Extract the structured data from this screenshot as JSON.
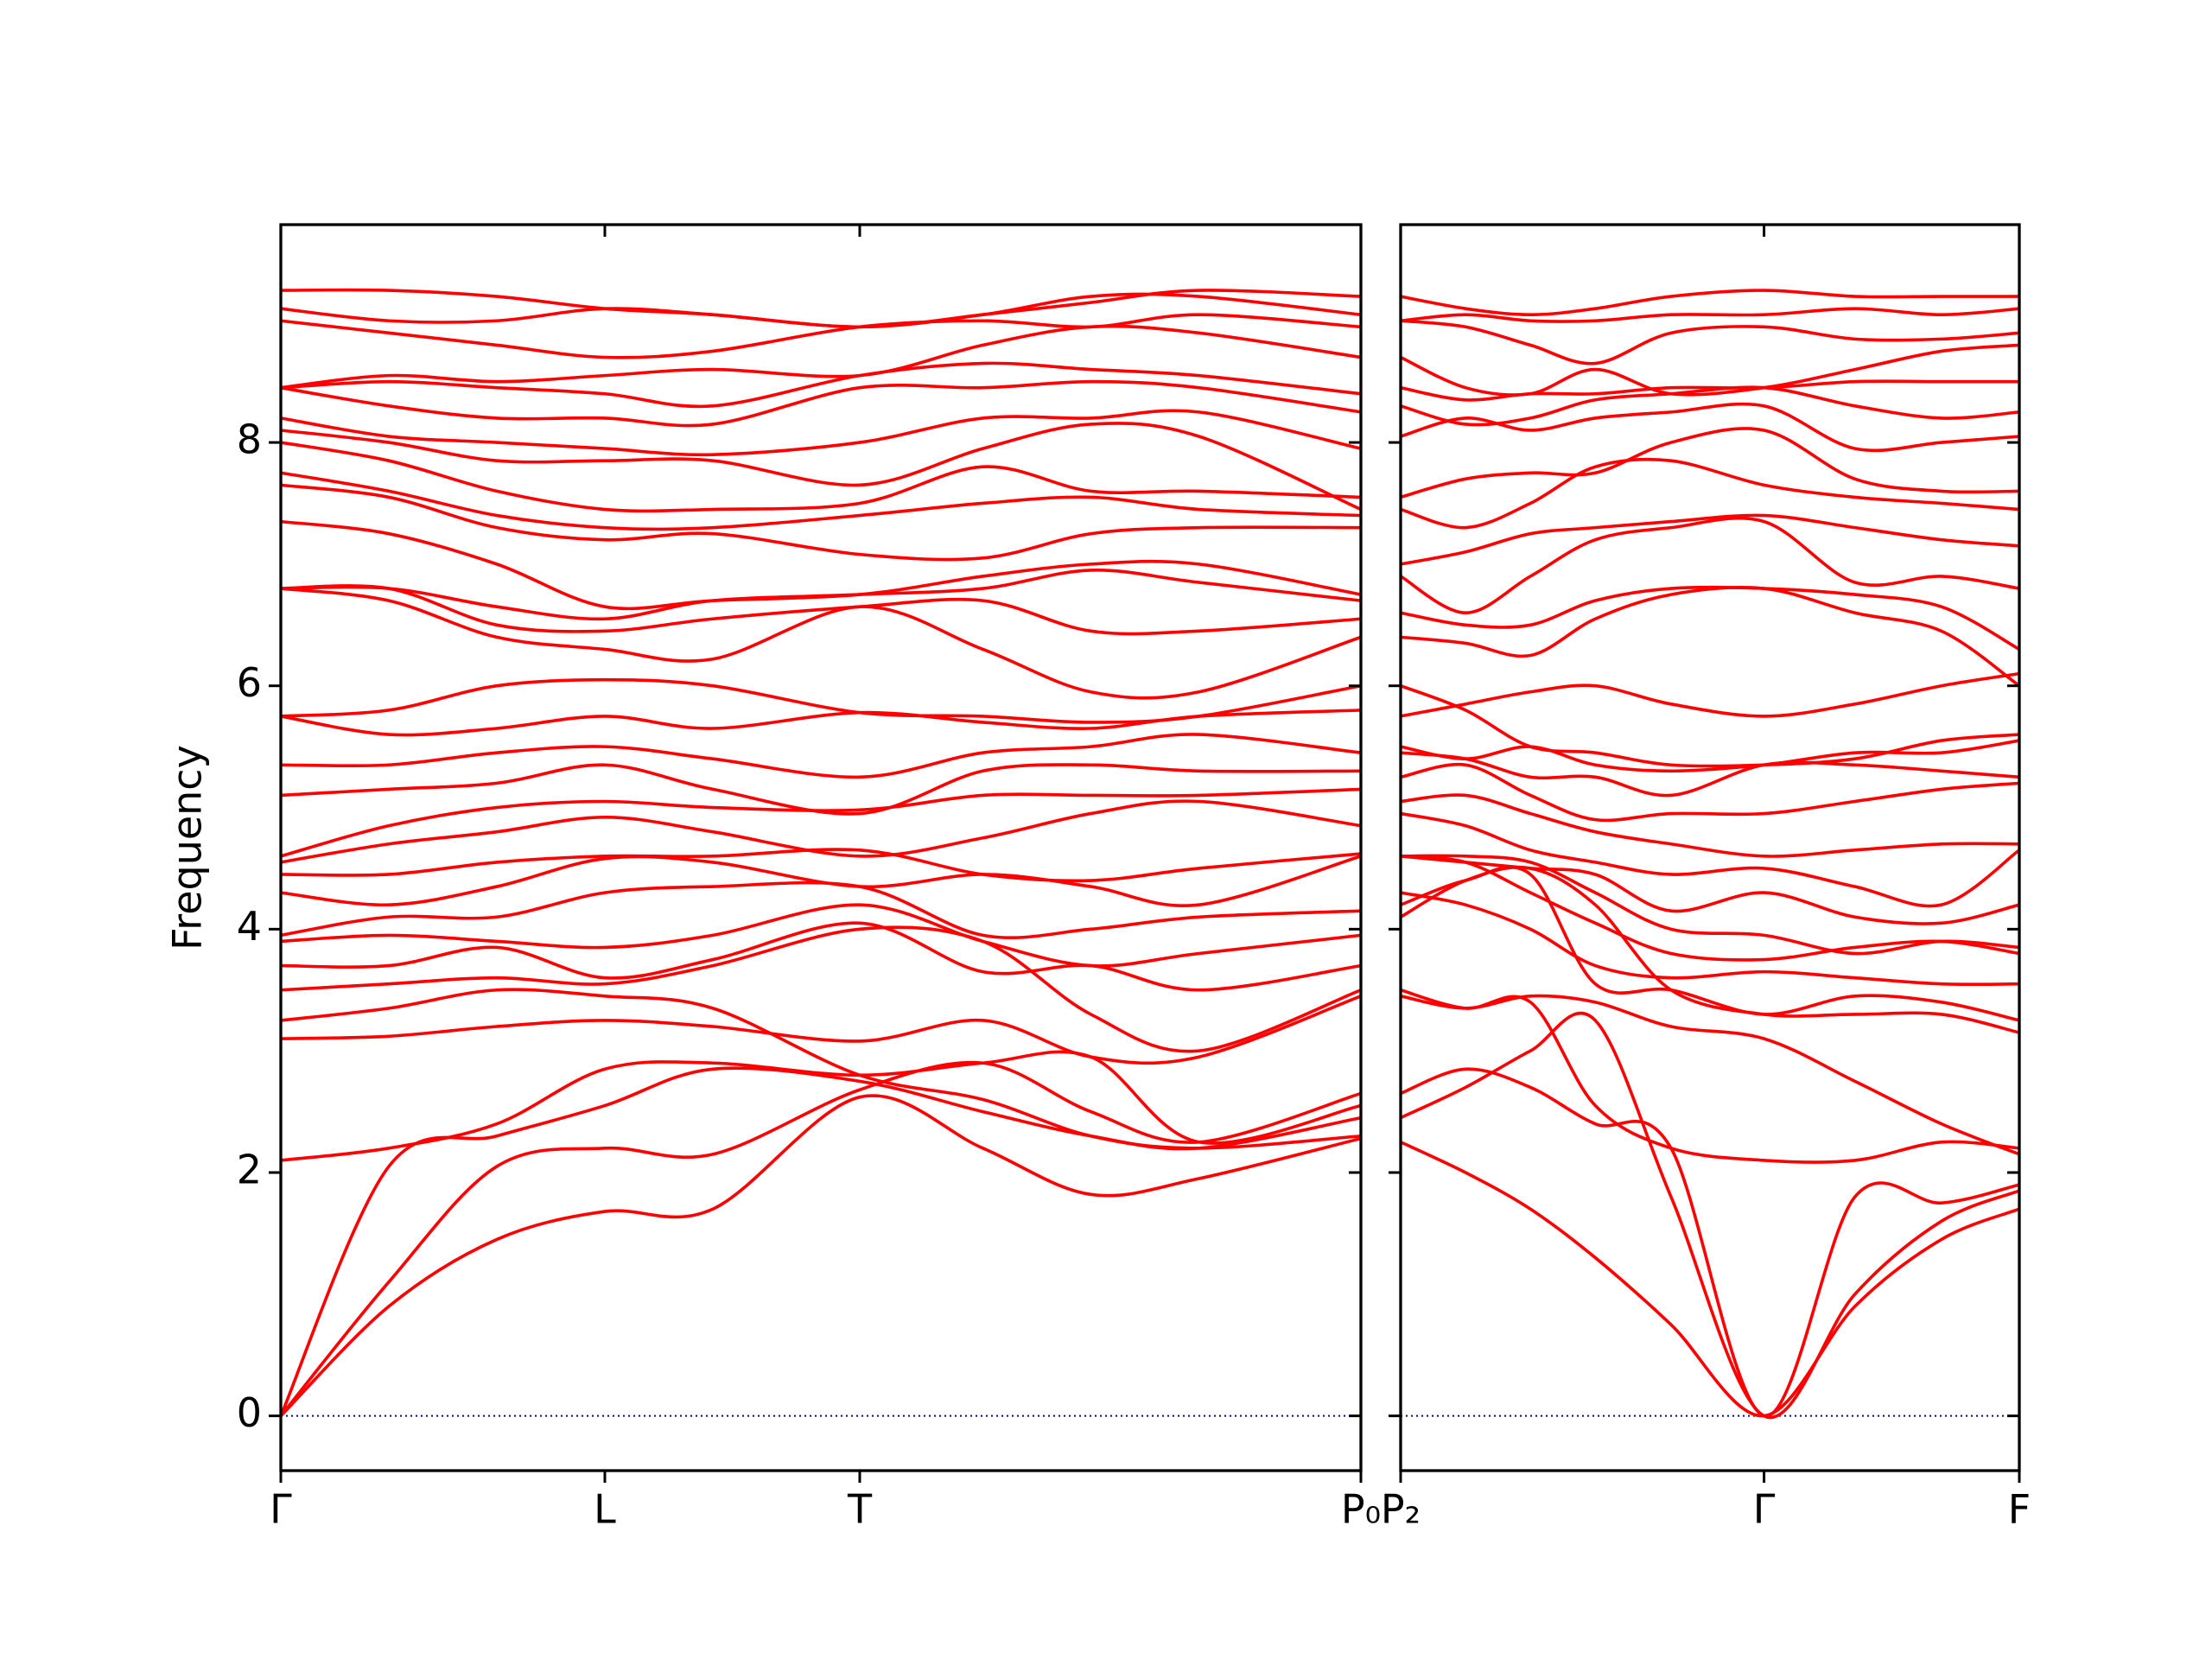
{
  "chart_data": [
    {
      "type": "line",
      "ylabel": "Frequency",
      "color": "#ff0000",
      "x": [
        0,
        0.1,
        0.2,
        0.3,
        0.4,
        0.536,
        0.65,
        0.75,
        0.85,
        1.0
      ],
      "xlim": [
        0,
        1.0
      ],
      "xticks": [
        {
          "value": 0,
          "label": "Γ"
        },
        {
          "value": 0.3,
          "label": "L"
        },
        {
          "value": 0.536,
          "label": "T"
        },
        {
          "value": 1.0,
          "label": "P₀"
        }
      ],
      "ylim": [
        -0.45,
        9.79
      ],
      "yticks": [
        0,
        2,
        4,
        6,
        8
      ],
      "series": [
        {
          "values": [
            0,
            0.9,
            1.45,
            1.68,
            1.7,
            2.62,
            2.2,
            1.82,
            1.95,
            2.28
          ]
        },
        {
          "values": [
            0,
            1.1,
            2.05,
            2.2,
            2.15,
            2.68,
            2.9,
            2.5,
            2.25,
            2.65
          ]
        },
        {
          "values": [
            0,
            2.05,
            2.3,
            2.55,
            2.85,
            2.75,
            2.5,
            2.3,
            2.2,
            2.45
          ]
        },
        {
          "values": [
            2.1,
            2.2,
            2.4,
            2.85,
            2.9,
            2.8,
            2.9,
            2.95,
            2.25,
            2.55
          ]
        },
        {
          "values": [
            3.1,
            3.12,
            3.2,
            3.25,
            3.2,
            3.08,
            3.25,
            2.95,
            2.95,
            3.45
          ]
        },
        {
          "values": [
            3.25,
            3.35,
            3.5,
            3.45,
            3.35,
            2.8,
            2.6,
            2.3,
            2.2,
            2.3
          ]
        },
        {
          "values": [
            3.5,
            3.55,
            3.6,
            3.55,
            3.7,
            4.0,
            3.9,
            3.3,
            3.0,
            3.5
          ]
        },
        {
          "values": [
            3.7,
            3.7,
            3.85,
            3.6,
            3.75,
            4.05,
            3.65,
            3.7,
            3.5,
            3.7
          ]
        },
        {
          "values": [
            3.9,
            3.95,
            3.9,
            3.85,
            3.95,
            4.2,
            3.9,
            3.7,
            3.8,
            3.95
          ]
        },
        {
          "values": [
            3.95,
            4.1,
            4.1,
            4.3,
            4.35,
            4.35,
            3.95,
            4.0,
            4.1,
            4.15
          ]
        },
        {
          "values": [
            4.3,
            4.2,
            4.35,
            4.58,
            4.55,
            4.35,
            4.45,
            4.35,
            4.2,
            4.6
          ]
        },
        {
          "values": [
            4.45,
            4.45,
            4.55,
            4.6,
            4.6,
            4.65,
            4.45,
            4.4,
            4.5,
            4.62
          ]
        },
        {
          "values": [
            4.55,
            4.7,
            4.8,
            4.92,
            4.8,
            4.6,
            4.75,
            4.95,
            5.05,
            4.85
          ]
        },
        {
          "values": [
            4.6,
            4.85,
            5.0,
            5.05,
            5.0,
            4.98,
            5.1,
            5.1,
            5.1,
            5.15
          ]
        },
        {
          "values": [
            5.1,
            5.15,
            5.2,
            5.35,
            5.15,
            4.95,
            5.3,
            5.35,
            5.3,
            5.3
          ]
        },
        {
          "values": [
            5.35,
            5.35,
            5.45,
            5.5,
            5.4,
            5.25,
            5.45,
            5.5,
            5.6,
            5.45
          ]
        },
        {
          "values": [
            5.75,
            5.6,
            5.65,
            5.75,
            5.65,
            5.78,
            5.7,
            5.65,
            5.75,
            5.8
          ]
        },
        {
          "values": [
            5.75,
            5.8,
            6.0,
            6.05,
            6.0,
            5.78,
            5.75,
            5.7,
            5.75,
            6.0
          ]
        },
        {
          "values": [
            6.8,
            6.7,
            6.4,
            6.3,
            6.22,
            6.65,
            6.3,
            5.95,
            5.95,
            6.4
          ]
        },
        {
          "values": [
            6.8,
            6.8,
            6.5,
            6.45,
            6.55,
            6.65,
            6.7,
            6.45,
            6.45,
            6.55
          ]
        },
        {
          "values": [
            6.8,
            6.8,
            6.65,
            6.55,
            6.7,
            6.75,
            6.8,
            6.95,
            6.85,
            6.7
          ]
        },
        {
          "values": [
            7.35,
            7.25,
            7.0,
            6.65,
            6.7,
            6.75,
            6.9,
            7.0,
            7.0,
            6.75
          ]
        },
        {
          "values": [
            7.65,
            7.55,
            7.3,
            7.2,
            7.25,
            7.08,
            7.05,
            7.25,
            7.3,
            7.3
          ]
        },
        {
          "values": [
            7.75,
            7.6,
            7.4,
            7.3,
            7.3,
            7.4,
            7.5,
            7.55,
            7.45,
            7.4
          ]
        },
        {
          "values": [
            8.0,
            7.85,
            7.6,
            7.45,
            7.45,
            7.5,
            7.8,
            7.6,
            7.6,
            7.55
          ]
        },
        {
          "values": [
            8.1,
            8.0,
            7.85,
            7.85,
            7.85,
            7.65,
            7.95,
            8.15,
            8.05,
            7.45
          ]
        },
        {
          "values": [
            8.2,
            8.05,
            8.0,
            7.95,
            7.9,
            8.0,
            8.2,
            8.2,
            8.25,
            7.95
          ]
        },
        {
          "values": [
            8.45,
            8.3,
            8.2,
            8.2,
            8.15,
            8.45,
            8.45,
            8.5,
            8.45,
            8.25
          ]
        },
        {
          "values": [
            8.45,
            8.5,
            8.45,
            8.4,
            8.3,
            8.55,
            8.65,
            8.6,
            8.55,
            8.4
          ]
        },
        {
          "values": [
            8.45,
            8.55,
            8.5,
            8.55,
            8.6,
            8.55,
            8.8,
            8.95,
            8.9,
            8.7
          ]
        },
        {
          "values": [
            9.0,
            8.9,
            8.8,
            8.7,
            8.75,
            8.95,
            9.0,
            8.95,
            9.05,
            8.95
          ]
        },
        {
          "values": [
            9.1,
            9.0,
            9.0,
            9.1,
            9.05,
            8.95,
            9.05,
            9.2,
            9.2,
            9.05
          ]
        },
        {
          "values": [
            9.25,
            9.25,
            9.2,
            9.1,
            9.05,
            8.95,
            9.05,
            9.15,
            9.25,
            9.2
          ]
        }
      ]
    },
    {
      "type": "line",
      "color": "#ff0000",
      "ytick_labels": false,
      "x": [
        0,
        0.06,
        0.12,
        0.18,
        0.25,
        0.336,
        0.42,
        0.5,
        0.572
      ],
      "xlim": [
        0,
        0.572
      ],
      "xticks": [
        {
          "value": 0,
          "label": "P₂"
        },
        {
          "value": 0.336,
          "label": "Γ"
        },
        {
          "value": 0.572,
          "label": "F"
        }
      ],
      "ylim": [
        -0.45,
        9.79
      ],
      "yticks": [
        0,
        2,
        4,
        6,
        8
      ],
      "series": [
        {
          "values": [
            2.25,
            2.0,
            1.7,
            1.3,
            0.75,
            0,
            0.9,
            1.45,
            1.7
          ]
        },
        {
          "values": [
            2.45,
            2.7,
            3.0,
            3.25,
            1.8,
            0,
            1.0,
            1.6,
            1.85
          ]
        },
        {
          "values": [
            2.65,
            2.85,
            2.7,
            2.4,
            2.2,
            0,
            1.8,
            1.75,
            1.9
          ]
        },
        {
          "values": [
            3.5,
            3.35,
            3.4,
            2.55,
            2.2,
            2.1,
            2.1,
            2.25,
            2.2
          ]
        },
        {
          "values": [
            3.45,
            3.35,
            3.45,
            3.4,
            3.2,
            3.1,
            2.75,
            2.4,
            2.15
          ]
        },
        {
          "values": [
            4.1,
            4.4,
            4.5,
            4.2,
            3.5,
            3.3,
            3.3,
            3.3,
            3.15
          ]
        },
        {
          "values": [
            4.2,
            4.4,
            4.45,
            3.55,
            3.5,
            3.3,
            3.45,
            3.4,
            3.25
          ]
        },
        {
          "values": [
            4.3,
            4.2,
            4.0,
            3.7,
            3.6,
            3.65,
            3.6,
            3.55,
            3.55
          ]
        },
        {
          "values": [
            4.6,
            4.55,
            4.3,
            4.05,
            3.8,
            3.75,
            3.85,
            3.9,
            3.8
          ]
        },
        {
          "values": [
            4.6,
            4.6,
            4.55,
            4.3,
            4.0,
            3.95,
            3.8,
            3.9,
            3.85
          ]
        },
        {
          "values": [
            4.6,
            4.55,
            4.5,
            4.45,
            4.15,
            4.3,
            4.1,
            4.05,
            4.2
          ]
        },
        {
          "values": [
            4.95,
            4.85,
            4.65,
            4.55,
            4.45,
            4.5,
            4.35,
            4.2,
            4.65
          ]
        },
        {
          "values": [
            5.05,
            5.1,
            4.95,
            4.8,
            4.7,
            4.6,
            4.65,
            4.7,
            4.7
          ]
        },
        {
          "values": [
            5.25,
            5.35,
            5.1,
            4.9,
            4.95,
            4.95,
            5.05,
            5.15,
            5.2
          ]
        },
        {
          "values": [
            5.45,
            5.4,
            5.25,
            5.25,
            5.1,
            5.35,
            5.35,
            5.3,
            5.25
          ]
        },
        {
          "values": [
            5.5,
            5.4,
            5.5,
            5.35,
            5.3,
            5.35,
            5.45,
            5.45,
            5.55
          ]
        },
        {
          "values": [
            6.0,
            5.8,
            5.5,
            5.45,
            5.35,
            5.35,
            5.4,
            5.55,
            5.6
          ]
        },
        {
          "values": [
            5.75,
            5.85,
            5.95,
            6.0,
            5.85,
            5.75,
            5.85,
            6.0,
            6.1
          ]
        },
        {
          "values": [
            6.4,
            6.35,
            6.25,
            6.55,
            6.75,
            6.8,
            6.6,
            6.45,
            6.0
          ]
        },
        {
          "values": [
            6.6,
            6.5,
            6.5,
            6.7,
            6.8,
            6.8,
            6.75,
            6.65,
            6.3
          ]
        },
        {
          "values": [
            6.9,
            6.6,
            6.9,
            7.2,
            7.3,
            7.35,
            6.85,
            6.9,
            6.8
          ]
        },
        {
          "values": [
            7.0,
            7.1,
            7.25,
            7.3,
            7.35,
            7.4,
            7.3,
            7.2,
            7.15
          ]
        },
        {
          "values": [
            7.45,
            7.3,
            7.5,
            7.8,
            7.85,
            7.65,
            7.55,
            7.5,
            7.45
          ]
        },
        {
          "values": [
            7.55,
            7.7,
            7.75,
            7.75,
            8.0,
            8.1,
            7.7,
            7.6,
            7.6
          ]
        },
        {
          "values": [
            8.05,
            8.2,
            8.1,
            8.2,
            8.25,
            8.3,
            7.95,
            8.0,
            8.05
          ]
        },
        {
          "values": [
            8.3,
            8.15,
            8.2,
            8.35,
            8.4,
            8.45,
            8.3,
            8.2,
            8.25
          ]
        },
        {
          "values": [
            8.45,
            8.35,
            8.4,
            8.4,
            8.45,
            8.45,
            8.5,
            8.5,
            8.5
          ]
        },
        {
          "values": [
            8.7,
            8.45,
            8.4,
            8.6,
            8.4,
            8.45,
            8.6,
            8.75,
            8.8
          ]
        },
        {
          "values": [
            9.0,
            8.95,
            8.8,
            8.65,
            8.9,
            8.95,
            8.85,
            8.85,
            8.9
          ]
        },
        {
          "values": [
            9.0,
            9.05,
            9.0,
            9.0,
            9.05,
            9.05,
            9.1,
            9.05,
            9.1
          ]
        },
        {
          "values": [
            9.2,
            9.1,
            9.05,
            9.1,
            9.2,
            9.25,
            9.2,
            9.2,
            9.2
          ]
        }
      ]
    }
  ]
}
